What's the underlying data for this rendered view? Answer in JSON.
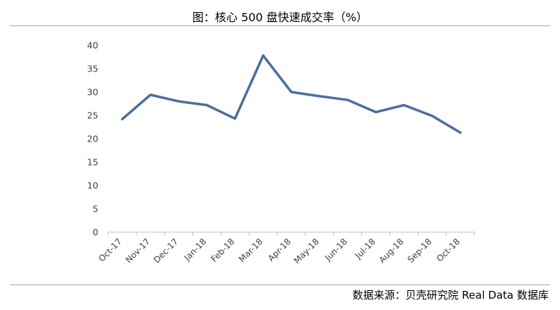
{
  "title": "图：核心 500 盘快速成交率（%）",
  "source": "数据来源：贝壳研究院 Real Data 数据库",
  "colors": {
    "line": "#4a6f9e",
    "axis": "#bfbfbf",
    "rule": "#a6a6a6",
    "text": "#404040"
  },
  "chart_data": {
    "type": "line",
    "title": "图：核心 500 盘快速成交率（%）",
    "xlabel": "",
    "ylabel": "",
    "categories": [
      "Oct-17",
      "Nov-17",
      "Dec-17",
      "Jan-18",
      "Feb-18",
      "Mar-18",
      "Apr-18",
      "May-18",
      "Jun-18",
      "Jul-18",
      "Aug-18",
      "Sep-18",
      "Oct-18"
    ],
    "series": [
      {
        "values": [
          24.2,
          29.4,
          28.0,
          27.2,
          24.3,
          37.8,
          30.0,
          29.1,
          28.3,
          25.7,
          27.2,
          24.9,
          21.3
        ]
      }
    ],
    "ylim": [
      0,
      40
    ],
    "yticks": [
      0,
      5,
      10,
      15,
      20,
      25,
      30,
      35,
      40
    ],
    "grid": false,
    "legend": "none"
  }
}
